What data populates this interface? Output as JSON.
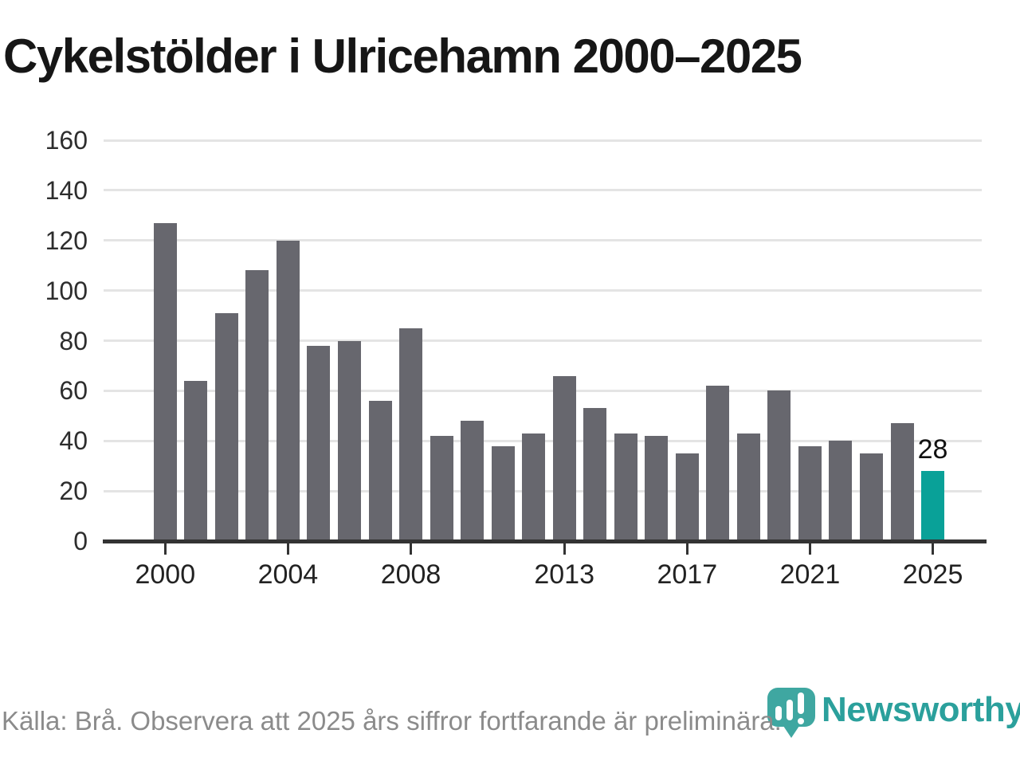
{
  "title": "Cykelstölder i Ulricehamn 2000–2025",
  "footer": {
    "source_note": "Källa: Brå. Observera att 2025 års siffror fortfarande är preliminära.",
    "brand_name": "Newsworthy"
  },
  "colors": {
    "bar": "#67676e",
    "highlight": "#09a198",
    "grid": "#e4e4e4",
    "axis": "#333333",
    "title_text": "#161616",
    "tick_text": "#2d2d2d",
    "muted_text": "#8b8b8b",
    "brand": "#2ba09c"
  },
  "chart_data": {
    "type": "bar",
    "title": "Cykelstölder i Ulricehamn 2000–2025",
    "categories": [
      2000,
      2001,
      2002,
      2003,
      2004,
      2005,
      2006,
      2007,
      2008,
      2009,
      2010,
      2011,
      2012,
      2013,
      2014,
      2015,
      2016,
      2017,
      2018,
      2019,
      2020,
      2021,
      2022,
      2023,
      2024,
      2025
    ],
    "values": [
      127,
      64,
      91,
      108,
      120,
      78,
      80,
      56,
      85,
      42,
      48,
      38,
      43,
      66,
      53,
      43,
      42,
      35,
      62,
      43,
      60,
      38,
      40,
      35,
      47,
      28
    ],
    "highlight_category": 2025,
    "highlight_value_label": "28",
    "x_tick_labels": [
      "2000",
      "2004",
      "2008",
      "2013",
      "2017",
      "2021",
      "2025"
    ],
    "y_ticks": [
      0,
      20,
      40,
      60,
      80,
      100,
      120,
      140,
      160
    ],
    "ylim": [
      0,
      160
    ],
    "xlabel": "",
    "ylabel": "",
    "grid": "horizontal",
    "legend": "none"
  }
}
